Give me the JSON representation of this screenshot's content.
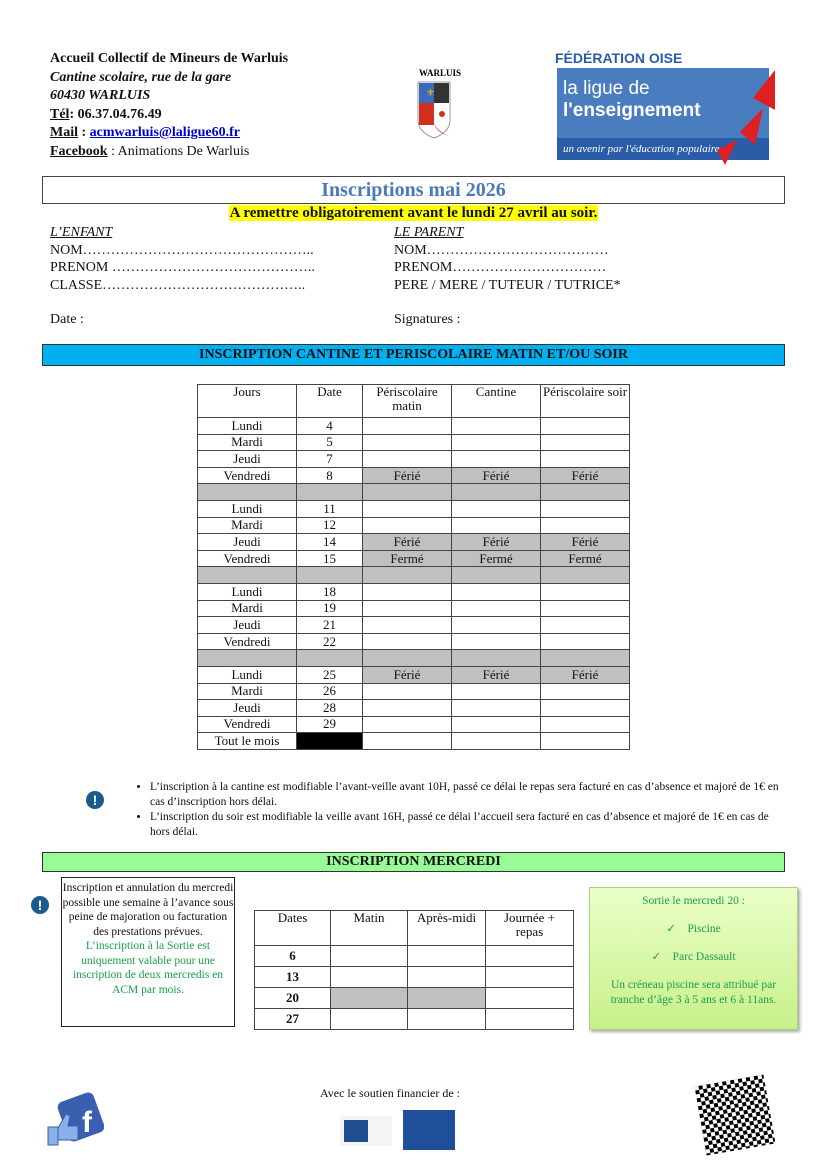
{
  "header": {
    "org": "Accueil Collectif de Mineurs de Warluis",
    "address1": "Cantine scolaire, rue de la gare",
    "address2": "60430 WARLUIS",
    "tel_label": "Tél",
    "tel": ": 06.37.04.76.49",
    "mail_label": "Mail",
    "mail": "acmwarluis@laligue60.fr",
    "fb_label": "Facebook",
    "fb": " : Animations De Warluis"
  },
  "logos": {
    "warluis": "WARLUIS",
    "federation": "FÉDÉRATION OISE",
    "ligue1": "la ligue de",
    "ligue2": "l'enseignement",
    "ligue3": "un avenir par l'éducation populaire"
  },
  "title": "Inscriptions mai 2026",
  "deadline": "A remettre obligatoirement avant le lundi 27 avril au soir.",
  "child": {
    "heading": "L’ENFANT ",
    "nom": "NOM…………………………………………..",
    "prenom": "PRENOM ……………………………………..",
    "classe": "CLASSE……………………………………..",
    "date": "Date :"
  },
  "parent": {
    "heading": "LE PARENT",
    "nom": "NOM…………………………………",
    "prenom": "PRENOM……………………………",
    "role": "PERE / MERE / TUTEUR / TUTRICE*",
    "sign": "Signatures :"
  },
  "band1": "INSCRIPTION CANTINE ET PERISCOLAIRE MATIN ET/OU SOIR",
  "table1": {
    "headers": [
      "Jours",
      "Date",
      "Périscolaire matin",
      "Cantine",
      "Périscolaire soir"
    ],
    "rows": [
      [
        "Lundi",
        "4",
        "",
        "",
        ""
      ],
      [
        "Mardi",
        "5",
        "",
        "",
        ""
      ],
      [
        "Jeudi",
        "7",
        "",
        "",
        ""
      ],
      [
        "Vendredi",
        "8",
        "Férié",
        "Férié",
        "Férié"
      ],
      null,
      [
        "Lundi",
        "11",
        "",
        "",
        ""
      ],
      [
        "Mardi",
        "12",
        "",
        "",
        ""
      ],
      [
        "Jeudi",
        "14",
        "Férié",
        "Férié",
        "Férié"
      ],
      [
        "Vendredi",
        "15",
        "Fermé",
        "Fermé",
        "Fermé"
      ],
      null,
      [
        "Lundi",
        "18",
        "",
        "",
        ""
      ],
      [
        "Mardi",
        "19",
        "",
        "",
        ""
      ],
      [
        "Jeudi",
        "21",
        "",
        "",
        ""
      ],
      [
        "Vendredi",
        "22",
        "",
        "",
        ""
      ],
      null,
      [
        "Lundi",
        "25",
        "Férié",
        "Férié",
        "Férié"
      ],
      [
        "Mardi",
        "26",
        "",
        "",
        ""
      ],
      [
        "Jeudi",
        "28",
        "",
        "",
        ""
      ],
      [
        "Vendredi",
        "29",
        "",
        "",
        ""
      ],
      [
        "Tout le mois",
        "#",
        "",
        "",
        ""
      ]
    ]
  },
  "notes": [
    "L’inscription à la cantine est modifiable l’avant-veille avant 10H, passé ce délai le repas sera facturé en cas d’absence et majoré de 1€ en cas d’inscription hors délai.",
    "L’inscription du soir est modifiable la veille avant 16H, passé ce délai l’accueil sera facturé en cas d’absence et majoré de 1€ en cas de hors délai."
  ],
  "band2": "INSCRIPTION MERCREDI",
  "leftbox": {
    "text": "Inscription et annulation du mercredi possible une semaine à l’avance sous peine de majoration ou facturation des prestations prévues.",
    "green": "L’inscription à la Sortie est uniquement valable pour une inscription de deux mercredis en ACM par mois."
  },
  "table2": {
    "headers": [
      "Dates",
      "Matin",
      "Après-midi",
      "Journée + repas"
    ],
    "rows": [
      [
        "6",
        false
      ],
      [
        "13",
        false
      ],
      [
        "20",
        true
      ],
      [
        "27",
        false
      ]
    ]
  },
  "rightbox": {
    "title": "Sortie le mercredi 20 :",
    "items": [
      "Piscine",
      "Parc Dassault"
    ],
    "text": "Un créneau piscine sera attribué par tranche d’âge 3 à 5 ans et 6 à 11ans."
  },
  "footer": {
    "support": "Avec le soutien financier de :"
  },
  "colors": {
    "title": "#4a7ab8",
    "band1": "#00b0f0",
    "band2": "#98fb98",
    "highlight": "#ffff00",
    "gray": "#c0c0c0"
  }
}
